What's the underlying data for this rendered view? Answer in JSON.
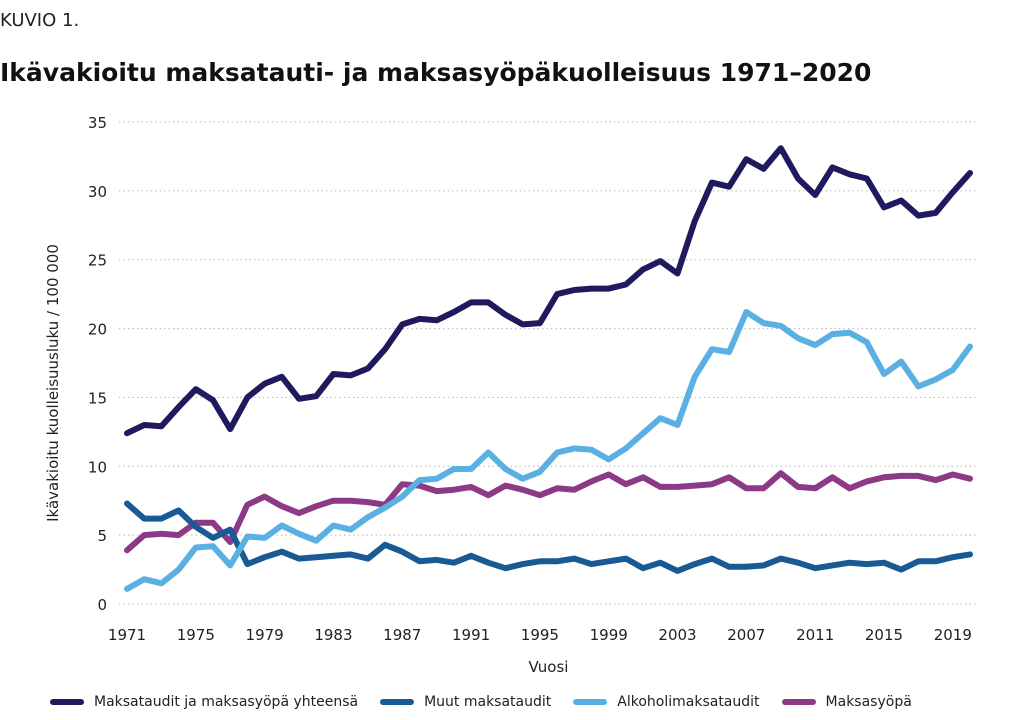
{
  "header": {
    "kicker": "KUVIO 1.",
    "title": "Ikävakioitu maksatauti- ja maksasyöpäkuolleisuus 1971–2020"
  },
  "chart_data": {
    "type": "line",
    "xlabel": "Vuosi",
    "ylabel": "Ikävakioitu kuolleisuusluku / 100 000",
    "ylim": [
      0,
      35
    ],
    "yticks": [
      0,
      5,
      10,
      15,
      20,
      25,
      30,
      35
    ],
    "xlim": [
      1971,
      2020
    ],
    "xticks": [
      1971,
      1975,
      1979,
      1983,
      1987,
      1991,
      1995,
      1999,
      2003,
      2007,
      2011,
      2015,
      2019
    ],
    "grid": "horizontal dotted",
    "legend_position": "bottom",
    "x": [
      1971,
      1972,
      1973,
      1974,
      1975,
      1976,
      1977,
      1978,
      1979,
      1980,
      1981,
      1982,
      1983,
      1984,
      1985,
      1986,
      1987,
      1988,
      1989,
      1990,
      1991,
      1992,
      1993,
      1994,
      1995,
      1996,
      1997,
      1998,
      1999,
      2000,
      2001,
      2002,
      2003,
      2004,
      2005,
      2006,
      2007,
      2008,
      2009,
      2010,
      2011,
      2012,
      2013,
      2014,
      2015,
      2016,
      2017,
      2018,
      2019,
      2020
    ],
    "series": [
      {
        "name": "Maksataudit ja maksasyöpä yhteensä",
        "color": "#1f1a5e",
        "values": [
          12.4,
          13.0,
          12.9,
          14.3,
          15.6,
          14.8,
          12.7,
          15.0,
          16.0,
          16.5,
          14.9,
          15.1,
          16.7,
          16.6,
          17.1,
          18.5,
          20.3,
          20.7,
          20.6,
          21.2,
          21.9,
          21.9,
          21.0,
          20.3,
          20.4,
          22.5,
          22.8,
          22.9,
          22.9,
          23.2,
          24.3,
          24.9,
          24.0,
          27.8,
          30.6,
          30.3,
          32.3,
          31.6,
          33.1,
          30.9,
          29.7,
          31.7,
          31.2,
          30.9,
          28.8,
          29.3,
          28.2,
          28.4,
          29.9,
          31.3
        ]
      },
      {
        "name": "Muut maksataudit",
        "color": "#1a5a94",
        "values": [
          7.3,
          6.2,
          6.2,
          6.8,
          5.6,
          4.8,
          5.4,
          2.9,
          3.4,
          3.8,
          3.3,
          3.4,
          3.5,
          3.6,
          3.3,
          4.3,
          3.8,
          3.1,
          3.2,
          3.0,
          3.5,
          3.0,
          2.6,
          2.9,
          3.1,
          3.1,
          3.3,
          2.9,
          3.1,
          3.3,
          2.6,
          3.0,
          2.4,
          2.9,
          3.3,
          2.7,
          2.7,
          2.8,
          3.3,
          3.0,
          2.6,
          2.8,
          3.0,
          2.9,
          3.0,
          2.5,
          3.1,
          3.1,
          3.4,
          3.6
        ]
      },
      {
        "name": "Alkoholimaksataudit",
        "color": "#5ab0e3",
        "values": [
          1.1,
          1.8,
          1.5,
          2.5,
          4.1,
          4.2,
          2.8,
          4.9,
          4.8,
          5.7,
          5.1,
          4.6,
          5.7,
          5.4,
          6.3,
          7.0,
          7.8,
          9.0,
          9.1,
          9.8,
          9.8,
          11.0,
          9.8,
          9.1,
          9.6,
          11.0,
          11.3,
          11.2,
          10.5,
          11.3,
          12.4,
          13.5,
          13.0,
          16.5,
          18.5,
          18.3,
          21.2,
          20.4,
          20.2,
          19.3,
          18.8,
          19.6,
          19.7,
          19.0,
          16.7,
          17.6,
          15.8,
          16.3,
          17.0,
          18.7
        ]
      },
      {
        "name": "Maksasyöpä",
        "color": "#8c3a85",
        "values": [
          3.9,
          5.0,
          5.1,
          5.0,
          5.9,
          5.9,
          4.5,
          7.2,
          7.8,
          7.1,
          6.6,
          7.1,
          7.5,
          7.5,
          7.4,
          7.2,
          8.7,
          8.6,
          8.2,
          8.3,
          8.5,
          7.9,
          8.6,
          8.3,
          7.9,
          8.4,
          8.3,
          8.9,
          9.4,
          8.7,
          9.2,
          8.5,
          8.5,
          8.6,
          8.7,
          9.2,
          8.4,
          8.4,
          9.5,
          8.5,
          8.4,
          9.2,
          8.4,
          8.9,
          9.2,
          9.3,
          9.3,
          9.0,
          9.4,
          9.1
        ]
      }
    ]
  }
}
